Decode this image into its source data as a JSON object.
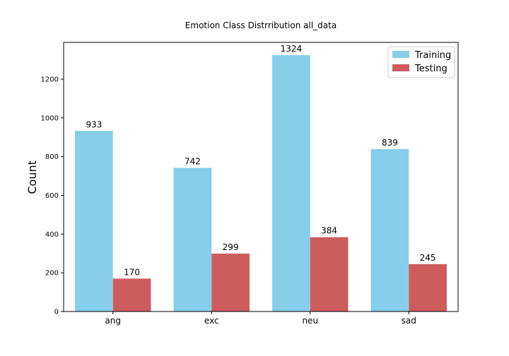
{
  "chart_data": {
    "type": "bar",
    "title": "Emotion Class Distrribution all_data",
    "xlabel": "",
    "ylabel": "Count",
    "categories": [
      "ang",
      "exc",
      "neu",
      "sad"
    ],
    "series": [
      {
        "name": "Training",
        "values": [
          933,
          742,
          1324,
          839
        ],
        "color": "#87ceeb"
      },
      {
        "name": "Testing",
        "values": [
          170,
          299,
          384,
          245
        ],
        "color": "#cd5c5c"
      }
    ],
    "ylim": [
      0,
      1390
    ],
    "yticks": [
      0,
      200,
      400,
      600,
      800,
      1000,
      1200
    ],
    "grid": false,
    "legend_position": "top-right"
  }
}
